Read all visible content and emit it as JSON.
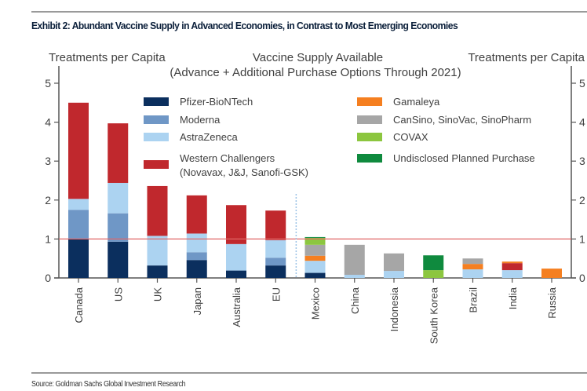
{
  "header": {
    "title": "Exhibit 2: Abundant Vaccine Supply in Advanced Economies, in Contrast to Most Emerging Economies"
  },
  "footer": {
    "source": "Source: Goldman Sachs Global Investment Research"
  },
  "chart_data": {
    "type": "bar",
    "stacked": true,
    "title": "Vaccine Supply Available",
    "subtitle": "(Advance + Additional Purchase Options Through 2021)",
    "ylabel_left": "Treatments per Capita",
    "ylabel_right": "Treatments per Capita",
    "xlabel": "",
    "ylim": [
      0,
      5
    ],
    "yticks": [
      "0",
      "1",
      "2",
      "3",
      "4",
      "5"
    ],
    "reference_line": {
      "y": 1,
      "color": "#e06666"
    },
    "group_separator_after": "EU",
    "categories": [
      "Canada",
      "US",
      "UK",
      "Japan",
      "Australia",
      "EU",
      "Mexico",
      "China",
      "Indonesia",
      "South Korea",
      "Brazil",
      "India",
      "Russia"
    ],
    "series": [
      {
        "name": "Pfizer-BioNTech",
        "color": "#0b2f5e",
        "values": [
          1.0,
          0.93,
          0.32,
          0.46,
          0.19,
          0.32,
          0.13,
          0.0,
          0.0,
          0.0,
          0.0,
          0.0,
          0.0
        ]
      },
      {
        "name": "Moderna",
        "color": "#6f97c6",
        "values": [
          0.75,
          0.73,
          0.0,
          0.2,
          0.0,
          0.2,
          0.0,
          0.0,
          0.0,
          0.0,
          0.0,
          0.0,
          0.0
        ]
      },
      {
        "name": "AstraZeneca",
        "color": "#acd3f1",
        "values": [
          0.28,
          0.78,
          0.76,
          0.48,
          0.68,
          0.45,
          0.31,
          0.08,
          0.18,
          0.0,
          0.22,
          0.2,
          0.0
        ]
      },
      {
        "name": "Western Challengers\n(Novavax, J&J, Sanofi-GSK)",
        "color": "#c0282d",
        "values": [
          2.47,
          1.53,
          1.28,
          0.98,
          1.0,
          0.76,
          0.0,
          0.0,
          0.0,
          0.0,
          0.0,
          0.18,
          0.0
        ]
      },
      {
        "name": "Gamaleya",
        "color": "#f57f20",
        "values": [
          0.0,
          0.0,
          0.0,
          0.0,
          0.0,
          0.0,
          0.13,
          0.0,
          0.0,
          0.0,
          0.14,
          0.04,
          0.24
        ]
      },
      {
        "name": "CanSino, SinoVac, SinoPharm",
        "color": "#a6a6a6",
        "values": [
          0.0,
          0.0,
          0.0,
          0.0,
          0.0,
          0.0,
          0.28,
          0.77,
          0.45,
          0.0,
          0.14,
          0.0,
          0.0
        ]
      },
      {
        "name": "COVAX",
        "color": "#8cc63f",
        "values": [
          0.0,
          0.0,
          0.0,
          0.0,
          0.0,
          0.0,
          0.18,
          0.0,
          0.0,
          0.2,
          0.0,
          0.0,
          0.0
        ]
      },
      {
        "name": "Undisclosed Planned Purchase",
        "color": "#0f8a3e",
        "values": [
          0.0,
          0.0,
          0.0,
          0.0,
          0.0,
          0.0,
          0.02,
          0.0,
          0.0,
          0.38,
          0.0,
          0.0,
          0.0
        ]
      }
    ],
    "legend": {
      "placement": "top-center",
      "columns": [
        [
          "Pfizer-BioNTech",
          "Moderna",
          "AstraZeneca",
          "Western Challengers\n(Novavax, J&J, Sanofi-GSK)"
        ],
        [
          "Gamaleya",
          "CanSino, SinoVac, SinoPharm",
          "COVAX",
          "Undisclosed Planned Purchase"
        ]
      ]
    },
    "grid": false
  }
}
